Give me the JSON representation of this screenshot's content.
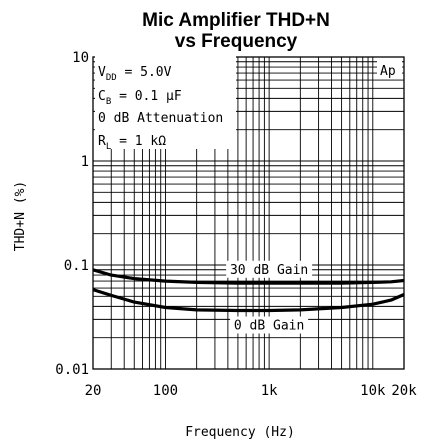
{
  "chart_data": {
    "type": "line",
    "title_line1": "Mic Amplifier THD+N",
    "title_line2": "vs Frequency",
    "xlabel": "Frequency (Hz)",
    "ylabel": "THD+N (%)",
    "x_scale": "log",
    "y_scale": "log",
    "xlim": [
      20,
      20000
    ],
    "ylim": [
      0.01,
      10
    ],
    "grid": true,
    "x_ticks": [
      {
        "value": 20,
        "label": "20"
      },
      {
        "value": 100,
        "label": "100"
      },
      {
        "value": 1000,
        "label": "1k"
      },
      {
        "value": 10000,
        "label": "10k"
      },
      {
        "value": 20000,
        "label": "20k"
      }
    ],
    "y_ticks": [
      {
        "value": 10,
        "label": "10"
      },
      {
        "value": 1,
        "label": "1"
      },
      {
        "value": 0.1,
        "label": "0.1"
      },
      {
        "value": 0.01,
        "label": "0.01"
      }
    ],
    "conditions": {
      "vdd_prefix": "V",
      "vdd_sub": "DD",
      "vdd_value": " = 5.0V",
      "cb_prefix": "C",
      "cb_sub": "B",
      "cb_value": " = 0.1 μF",
      "attenuation": "0 dB Attenuation",
      "rl_prefix": "R",
      "rl_sub": "L",
      "rl_value": " = 1 kΩ"
    },
    "logo": "Ap",
    "series": [
      {
        "name": "30 dB Gain",
        "x": [
          20,
          30,
          50,
          100,
          200,
          500,
          1000,
          2000,
          5000,
          10000,
          15000,
          20000
        ],
        "y": [
          0.09,
          0.08,
          0.074,
          0.07,
          0.068,
          0.067,
          0.067,
          0.067,
          0.067,
          0.068,
          0.069,
          0.071
        ]
      },
      {
        "name": "0 dB Gain",
        "x": [
          20,
          30,
          50,
          100,
          200,
          500,
          1000,
          2000,
          5000,
          10000,
          15000,
          20000
        ],
        "y": [
          0.058,
          0.051,
          0.044,
          0.039,
          0.037,
          0.0365,
          0.0365,
          0.037,
          0.039,
          0.042,
          0.046,
          0.052
        ]
      }
    ]
  }
}
